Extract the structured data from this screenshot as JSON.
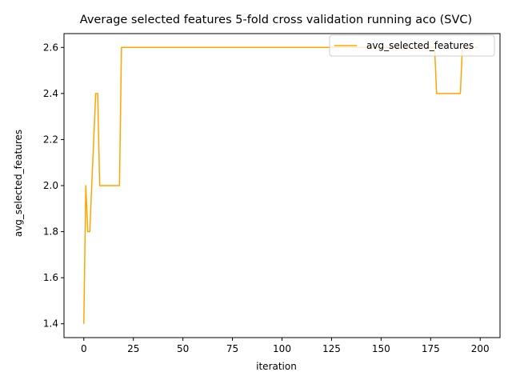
{
  "chart_data": {
    "type": "line",
    "title": "Average selected features 5-fold cross validation running aco (SVC)",
    "xlabel": "iteration",
    "ylabel": "avg_selected_features",
    "xlim": [
      -10,
      210
    ],
    "ylim": [
      1.34,
      2.66
    ],
    "xticks": [
      0,
      25,
      50,
      75,
      100,
      125,
      150,
      175,
      200
    ],
    "yticks": [
      1.4,
      1.6,
      1.8,
      2.0,
      2.2,
      2.4,
      2.6
    ],
    "ytick_labels": [
      "1.4",
      "1.6",
      "1.8",
      "2.0",
      "2.2",
      "2.4",
      "2.6"
    ],
    "grid": false,
    "legend_position": "top-right",
    "series": [
      {
        "name": "avg_selected_features",
        "color": "#ffa500",
        "x": [
          0,
          1,
          2,
          3,
          4,
          5,
          6,
          7,
          8,
          9,
          10,
          11,
          12,
          13,
          14,
          15,
          16,
          17,
          18,
          19,
          20,
          176,
          177,
          178,
          179,
          180,
          181,
          182,
          183,
          184,
          185,
          186,
          187,
          188,
          189,
          190,
          191,
          192,
          193,
          194,
          195,
          196,
          197,
          198,
          199
        ],
        "y": [
          1.4,
          2.0,
          1.8,
          1.8,
          2.0,
          2.2,
          2.4,
          2.4,
          2.0,
          2.0,
          2.0,
          2.0,
          2.0,
          2.0,
          2.0,
          2.0,
          2.0,
          2.0,
          2.0,
          2.6,
          2.6,
          2.6,
          2.6,
          2.4,
          2.4,
          2.4,
          2.4,
          2.4,
          2.4,
          2.4,
          2.4,
          2.4,
          2.4,
          2.4,
          2.4,
          2.4,
          2.6,
          2.6,
          2.6,
          2.6,
          2.6,
          2.6,
          2.6,
          2.6,
          2.6
        ]
      }
    ]
  }
}
